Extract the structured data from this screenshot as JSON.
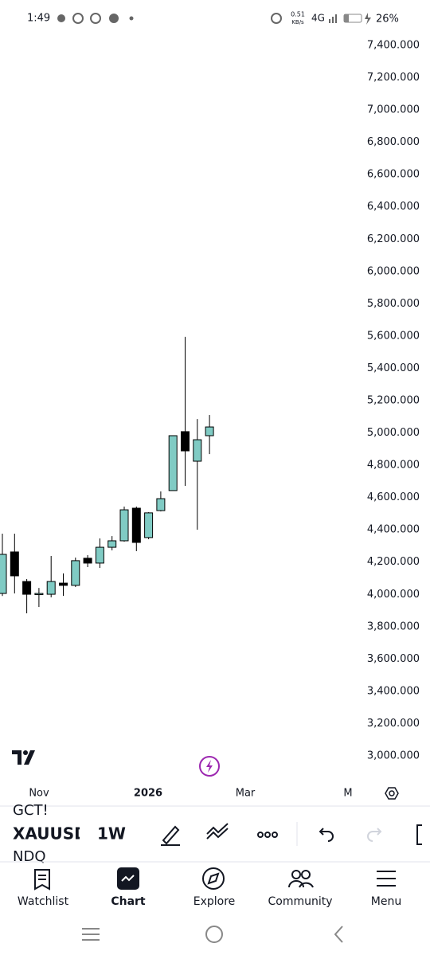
{
  "status_bar": {
    "time": "1:49",
    "speed": "0.51",
    "speed_unit": "KB/s",
    "network": "4G",
    "battery": "26%"
  },
  "chart_data": {
    "type": "candlestick",
    "categories": [
      null,
      null,
      null,
      null,
      null,
      null,
      null,
      null,
      null,
      null,
      null,
      null,
      null,
      null,
      null,
      null,
      null,
      null
    ],
    "series": [
      {
        "up_color": "#80cbc4",
        "down_color": "#000000",
        "open": [
          4006,
          4263,
          4080,
          3999,
          4001,
          4070,
          4056,
          4224,
          4194,
          4292,
          4332,
          4534,
          4352,
          4519,
          4643,
          5008,
          4825,
          4983
        ],
        "high": [
          4376,
          4376,
          4095,
          4040,
          4238,
          4130,
          4228,
          4243,
          4347,
          4361,
          4544,
          4544,
          4509,
          4638,
          4983,
          5595,
          5086,
          5111
        ],
        "low": [
          3990,
          4006,
          3883,
          3922,
          3982,
          3991,
          4046,
          4169,
          4164,
          4273,
          4327,
          4268,
          4342,
          4514,
          4643,
          4672,
          4401,
          4869
        ],
        "close": [
          4248,
          4115,
          4001,
          4006,
          4080,
          4056,
          4209,
          4194,
          4292,
          4332,
          4524,
          4322,
          4505,
          4593,
          4983,
          4889,
          4958,
          5037
        ]
      }
    ],
    "ylim": [
      3000,
      7400
    ],
    "yticks": [
      {
        "value": 3000,
        "label": "3,000.000"
      },
      {
        "value": 3200,
        "label": "3,200.000"
      },
      {
        "value": 3400,
        "label": "3,400.000"
      },
      {
        "value": 3600,
        "label": "3,600.000"
      },
      {
        "value": 3800,
        "label": "3,800.000"
      },
      {
        "value": 4000,
        "label": "4,000.000"
      },
      {
        "value": 4200,
        "label": "4,200.000"
      },
      {
        "value": 4400,
        "label": "4,400.000"
      },
      {
        "value": 4600,
        "label": "4,600.000"
      },
      {
        "value": 4800,
        "label": "4,800.000"
      },
      {
        "value": 5000,
        "label": "5,000.000"
      },
      {
        "value": 5200,
        "label": "5,200.000"
      },
      {
        "value": 5400,
        "label": "5,400.000"
      },
      {
        "value": 5600,
        "label": "5,600.000"
      },
      {
        "value": 5800,
        "label": "5,800.000"
      },
      {
        "value": 6000,
        "label": "6,000.000"
      },
      {
        "value": 6200,
        "label": "6,200.000"
      },
      {
        "value": 6400,
        "label": "6,400.000"
      },
      {
        "value": 6600,
        "label": "6,600.000"
      },
      {
        "value": 6800,
        "label": "6,800.000"
      },
      {
        "value": 7000,
        "label": "7,000.000"
      },
      {
        "value": 7200,
        "label": "7,200.000"
      },
      {
        "value": 7400,
        "label": "7,400.000"
      }
    ],
    "x_labels": [
      "Nov",
      "2026",
      "Mar",
      "M"
    ]
  },
  "toolbar": {
    "ghost_top": "GCT!",
    "symbol": "XAUUSD",
    "interval": "1W",
    "ghost_bottom": "NDQ"
  },
  "nav": [
    "Watchlist",
    "Chart",
    "Explore",
    "Community",
    "Menu"
  ]
}
